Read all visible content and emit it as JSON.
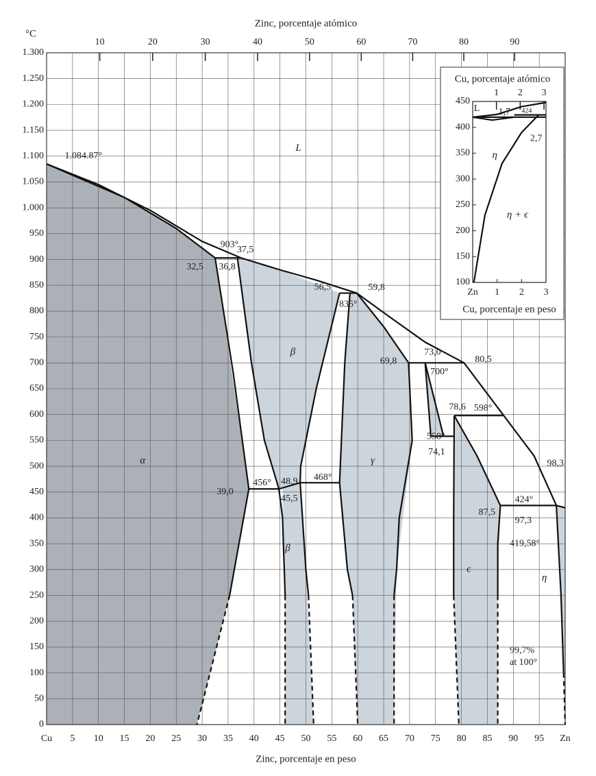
{
  "chart_data": [
    {
      "type": "phase-diagram",
      "xlabel": "Zinc, porcentaje en peso",
      "x2label": "Zinc, porcentaje atómico",
      "ylabel": "°C",
      "xlim": [
        0,
        100
      ],
      "ylim": [
        0,
        1300
      ],
      "xticks": [
        {
          "value": 0,
          "label": "Cu"
        },
        5,
        10,
        15,
        20,
        25,
        30,
        35,
        40,
        45,
        50,
        55,
        60,
        65,
        70,
        75,
        80,
        85,
        90,
        95,
        {
          "value": 100,
          "label": "Zn"
        }
      ],
      "x2ticks": [
        10,
        20,
        30,
        40,
        50,
        60,
        70,
        80,
        90
      ],
      "yticks": [
        0,
        50,
        100,
        150,
        200,
        250,
        300,
        350,
        400,
        450,
        500,
        550,
        600,
        650,
        700,
        750,
        800,
        850,
        900,
        950,
        {
          "value": 1000,
          "label": "1.000"
        },
        {
          "value": 1050,
          "label": "1.050"
        },
        {
          "value": 1100,
          "label": "1.100"
        },
        {
          "value": 1150,
          "label": "1.150"
        },
        {
          "value": 1200,
          "label": "1.200"
        },
        {
          "value": 1250,
          "label": "1.250"
        },
        {
          "value": 1300,
          "label": "1.300"
        }
      ],
      "grid": true,
      "regions": [
        {
          "color": "#9ea3aa",
          "x": [
            0,
            0,
            15,
            25,
            32.5,
            39,
            35.3,
            29
          ],
          "values": [
            0,
            1084.87,
            1020,
            960,
            903,
            456,
            250,
            0
          ]
        },
        {
          "color": "#c3ccd6",
          "x": [
            36.8,
            37.5,
            45,
            56.5,
            52,
            49,
            48.9,
            45.5,
            44.8,
            42,
            39.5
          ],
          "values": [
            903,
            903,
            880,
            835,
            650,
            500,
            468,
            456,
            456,
            550,
            700
          ]
        },
        {
          "color": "#c3ccd6",
          "x": [
            45.5,
            48.9,
            50,
            51.5,
            46,
            46,
            45.5
          ],
          "values": [
            456,
            468,
            300,
            0,
            0,
            250,
            400
          ]
        },
        {
          "color": "#c3ccd6",
          "x": [
            58.5,
            59.8,
            65,
            69.8,
            70.5,
            67.5,
            67,
            60,
            59,
            58,
            56.5,
            57.5
          ],
          "values": [
            835,
            835,
            770,
            700,
            550,
            300,
            0,
            0,
            250,
            300,
            468,
            700
          ]
        },
        {
          "color": "#c3ccd6",
          "x": [
            73,
            76.5,
            74.1
          ],
          "values": [
            700,
            560,
            558
          ]
        },
        {
          "color": "#c3ccd6",
          "x": [
            78.6,
            83,
            87.5,
            87,
            87,
            79.5,
            78.5
          ],
          "values": [
            598,
            520,
            424,
            250,
            0,
            0,
            250
          ]
        },
        {
          "color": "#c3ccd6",
          "x": [
            98.3,
            100,
            100,
            99.7
          ],
          "values": [
            424,
            419.58,
            0,
            100
          ]
        }
      ],
      "lines": [
        {
          "x": [
            0,
            10,
            20,
            30,
            37.5,
            45,
            52,
            59.8,
            66,
            73,
            80.5,
            88,
            94,
            98.3,
            100
          ],
          "values": [
            1084.87,
            1045,
            995,
            935,
            903,
            880,
            860,
            835,
            790,
            740,
            700,
            600,
            520,
            424,
            419.58
          ],
          "dashed": false
        },
        {
          "x": [
            0,
            15,
            25,
            32.5
          ],
          "values": [
            1084.87,
            1020,
            960,
            903
          ],
          "dashed": false
        },
        {
          "x": [
            32.5,
            37.5
          ],
          "values": [
            903,
            903
          ],
          "dashed": false
        },
        {
          "x": [
            32.5,
            36,
            39,
            35.3
          ],
          "values": [
            903,
            680,
            456,
            250
          ],
          "dashed": false
        },
        {
          "x": [
            35.3,
            29
          ],
          "values": [
            250,
            0
          ],
          "dashed": true
        },
        {
          "x": [
            36.8,
            39.5,
            42,
            44.8,
            45.5,
            46
          ],
          "values": [
            903,
            700,
            550,
            456,
            400,
            250
          ],
          "dashed": false
        },
        {
          "x": [
            46,
            46
          ],
          "values": [
            250,
            0
          ],
          "dashed": true
        },
        {
          "x": [
            56.5,
            52,
            49,
            48.9,
            50,
            50.5
          ],
          "values": [
            835,
            650,
            500,
            468,
            300,
            250
          ],
          "dashed": false
        },
        {
          "x": [
            50.5,
            51.5
          ],
          "values": [
            250,
            0
          ],
          "dashed": true
        },
        {
          "x": [
            39,
            44.8
          ],
          "values": [
            456,
            456
          ],
          "dashed": false
        },
        {
          "x": [
            44.8,
            48.9
          ],
          "values": [
            456,
            468
          ],
          "dashed": false
        },
        {
          "x": [
            48.9,
            56.5
          ],
          "values": [
            468,
            468
          ],
          "dashed": false
        },
        {
          "x": [
            56.5,
            59.8
          ],
          "values": [
            835,
            835
          ],
          "dashed": false
        },
        {
          "x": [
            58.5,
            57.5,
            56.5,
            58,
            59
          ],
          "values": [
            835,
            700,
            468,
            300,
            250
          ],
          "dashed": false
        },
        {
          "x": [
            59,
            60
          ],
          "values": [
            250,
            0
          ],
          "dashed": true
        },
        {
          "x": [
            59.8,
            65,
            69.8
          ],
          "values": [
            835,
            770,
            700
          ],
          "dashed": false
        },
        {
          "x": [
            69.8,
            80.5
          ],
          "values": [
            700,
            700
          ],
          "dashed": false
        },
        {
          "x": [
            69.8,
            70.5,
            68,
            67.5,
            67
          ],
          "values": [
            700,
            550,
            400,
            300,
            250
          ],
          "dashed": false
        },
        {
          "x": [
            67,
            67
          ],
          "values": [
            250,
            0
          ],
          "dashed": true
        },
        {
          "x": [
            73,
            74.1
          ],
          "values": [
            700,
            558
          ],
          "dashed": false
        },
        {
          "x": [
            73,
            76.5
          ],
          "values": [
            700,
            560
          ],
          "dashed": false
        },
        {
          "x": [
            74.1,
            78.5
          ],
          "values": [
            558,
            558
          ],
          "dashed": false
        },
        {
          "x": [
            78.6,
            78.5,
            78.5
          ],
          "values": [
            598,
            400,
            250
          ],
          "dashed": false
        },
        {
          "x": [
            78.5,
            79.5
          ],
          "values": [
            250,
            0
          ],
          "dashed": true
        },
        {
          "x": [
            78.6,
            88
          ],
          "values": [
            598,
            598
          ],
          "dashed": false
        },
        {
          "x": [
            78.6,
            83,
            87.5
          ],
          "values": [
            598,
            520,
            424
          ],
          "dashed": false
        },
        {
          "x": [
            87.5,
            87,
            87
          ],
          "values": [
            424,
            350,
            250
          ],
          "dashed": false
        },
        {
          "x": [
            87,
            87
          ],
          "values": [
            250,
            0
          ],
          "dashed": true
        },
        {
          "x": [
            87.5,
            98.3
          ],
          "values": [
            424,
            424
          ],
          "dashed": false
        },
        {
          "x": [
            98.3,
            99.2,
            99.7
          ],
          "values": [
            424,
            250,
            100
          ],
          "dashed": false
        },
        {
          "x": [
            99.7,
            100
          ],
          "values": [
            100,
            0
          ],
          "dashed": true
        }
      ],
      "annotations": [
        "1.084.87°",
        "903°",
        "37,5",
        "32,5",
        "36,8",
        "56,5",
        "835°",
        "59,8",
        "69,8",
        "73,0",
        "700°",
        "80,5",
        "78,6",
        "598°",
        "558°",
        "74,1",
        "98,3",
        "39,0",
        "456°",
        "48,9",
        "45,5",
        "468°",
        "424°",
        "87,5",
        "97,3",
        "419,58°",
        "99,7%",
        "at 100°"
      ],
      "phase_labels": [
        "L",
        "α",
        "β",
        "β",
        "γ",
        "ϵ",
        "η"
      ]
    },
    {
      "type": "phase-diagram",
      "xlabel": "Cu, porcentaje en peso",
      "x2label": "Cu, porcentaje atómico",
      "xlim": [
        0,
        3
      ],
      "ylim": [
        100,
        450
      ],
      "xticks": [
        {
          "value": 0,
          "label": "Zn"
        },
        1,
        2,
        3
      ],
      "x2ticks": [
        1,
        2,
        3
      ],
      "yticks": [
        100,
        150,
        200,
        250,
        300,
        350,
        400,
        450
      ],
      "grid": false,
      "regions": [],
      "lines": [
        {
          "x": [
            0.05,
            0.5,
            1.2,
            2,
            2.7
          ],
          "values": [
            100,
            230,
            330,
            390,
            424
          ],
          "dashed": false
        },
        {
          "x": [
            0,
            3
          ],
          "values": [
            419.58,
            419.58
          ],
          "dashed": false
        },
        {
          "x": [
            0,
            1,
            2,
            3
          ],
          "values": [
            419.58,
            425,
            440,
            448
          ],
          "dashed": false
        },
        {
          "x": [
            0,
            0.8,
            1.7
          ],
          "values": [
            419.58,
            414,
            419.58
          ],
          "dashed": false
        },
        {
          "x": [
            1.7,
            3
          ],
          "values": [
            424,
            424
          ],
          "dashed": false
        }
      ],
      "annotations": [
        "L",
        "1,7",
        "424",
        "2,7"
      ],
      "phase_labels": [
        "η",
        "η + ϵ"
      ]
    }
  ]
}
